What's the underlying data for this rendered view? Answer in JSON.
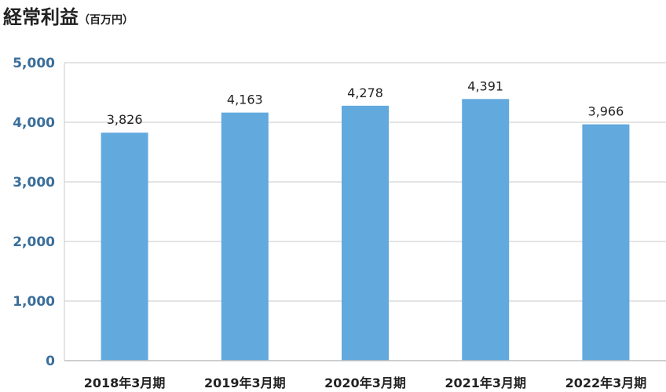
{
  "chart_data": {
    "type": "bar",
    "title": "経常利益",
    "unit": "（百万円）",
    "categories": [
      "2018年3月期",
      "2019年3月期",
      "2020年3月期",
      "2021年3月期",
      "2022年3月期"
    ],
    "values": [
      3826,
      4163,
      4278,
      4391,
      3966
    ],
    "value_labels": [
      "3,826",
      "4,163",
      "4,278",
      "4,391",
      "3,966"
    ],
    "ylim": [
      0,
      5000
    ],
    "yticks": [
      0,
      1000,
      2000,
      3000,
      4000,
      5000
    ],
    "ytick_labels": [
      "0",
      "1,000",
      "2,000",
      "3,000",
      "4,000",
      "5,000"
    ],
    "grid": true,
    "legend": "none"
  },
  "colors": {
    "bar": "#62a9de",
    "axis_text": "#3a6e9b",
    "grid": "#c8c8c8"
  }
}
